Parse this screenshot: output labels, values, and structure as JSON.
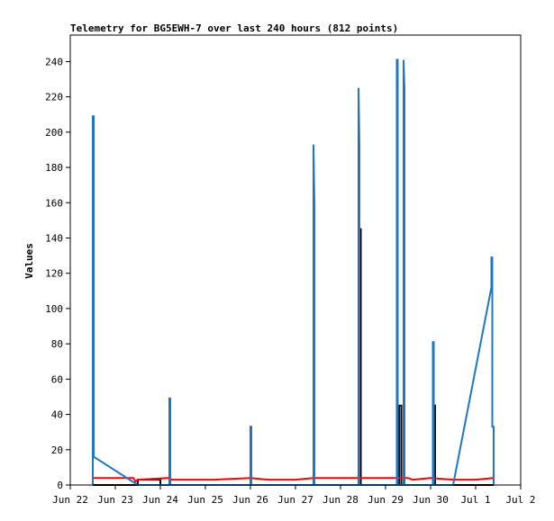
{
  "chart_data": {
    "type": "line",
    "title": "Telemetry for BG5EWH-7 over last 240 hours (812 points)",
    "ylabel": "Values",
    "xlabel": "",
    "xlim": [
      0,
      10
    ],
    "ylim": [
      0,
      255
    ],
    "x_ticks": [
      {
        "x": 0,
        "label": "Jun 22"
      },
      {
        "x": 1,
        "label": "Jun 23"
      },
      {
        "x": 2,
        "label": "Jun 24"
      },
      {
        "x": 3,
        "label": "Jun 25"
      },
      {
        "x": 4,
        "label": "Jun 26"
      },
      {
        "x": 5,
        "label": "Jun 27"
      },
      {
        "x": 6,
        "label": "Jun 28"
      },
      {
        "x": 7,
        "label": "Jun 29"
      },
      {
        "x": 8,
        "label": "Jun 30"
      },
      {
        "x": 9,
        "label": "Jul 1"
      },
      {
        "x": 10,
        "label": "Jul 2"
      }
    ],
    "y_ticks": [
      0,
      20,
      40,
      60,
      80,
      100,
      120,
      140,
      160,
      180,
      200,
      220,
      240
    ],
    "grid": false,
    "series": [
      {
        "color": "#000000",
        "points": [
          [
            0.5,
            0
          ],
          [
            1.5,
            0
          ],
          [
            1.5,
            3
          ],
          [
            2.0,
            3
          ],
          [
            2.0,
            0
          ],
          [
            6.4,
            0
          ],
          [
            6.4,
            145
          ],
          [
            6.45,
            145
          ],
          [
            6.45,
            0
          ],
          [
            7.3,
            0
          ],
          [
            7.3,
            45
          ],
          [
            7.35,
            45
          ],
          [
            7.35,
            0
          ],
          [
            8.05,
            0
          ],
          [
            8.05,
            45
          ],
          [
            8.1,
            45
          ],
          [
            8.1,
            0
          ],
          [
            9.4,
            0
          ]
        ]
      },
      {
        "color": "#ff0000",
        "points": [
          [
            0.5,
            4
          ],
          [
            1.4,
            4
          ],
          [
            1.45,
            2
          ],
          [
            1.5,
            3
          ],
          [
            2.2,
            4
          ],
          [
            2.25,
            3
          ],
          [
            3.0,
            3
          ],
          [
            3.2,
            3
          ],
          [
            4.0,
            4
          ],
          [
            4.4,
            3
          ],
          [
            5.0,
            3
          ],
          [
            5.4,
            4
          ],
          [
            6.0,
            4
          ],
          [
            7.5,
            4
          ],
          [
            7.6,
            3
          ],
          [
            8.0,
            4
          ],
          [
            8.5,
            3
          ],
          [
            9.0,
            3
          ],
          [
            9.4,
            4
          ]
        ]
      },
      {
        "color": "#1f77c4",
        "points": [
          [
            0.5,
            0
          ],
          [
            0.5,
            209
          ],
          [
            0.52,
            209
          ],
          [
            0.52,
            16
          ],
          [
            1.5,
            0
          ],
          [
            2.2,
            0
          ],
          [
            2.2,
            49
          ],
          [
            2.22,
            49
          ],
          [
            2.22,
            0
          ],
          [
            4.0,
            0
          ],
          [
            4.0,
            33
          ],
          [
            4.02,
            33
          ],
          [
            4.02,
            0
          ],
          [
            5.4,
            0
          ],
          [
            5.4,
            193
          ],
          [
            5.42,
            160
          ],
          [
            5.42,
            0
          ],
          [
            6.4,
            0
          ],
          [
            6.4,
            225
          ],
          [
            6.42,
            193
          ],
          [
            6.42,
            0
          ],
          [
            7.25,
            0
          ],
          [
            7.25,
            241
          ],
          [
            7.27,
            241
          ],
          [
            7.27,
            0
          ],
          [
            7.4,
            0
          ],
          [
            7.4,
            241
          ],
          [
            7.42,
            225
          ],
          [
            7.42,
            0
          ],
          [
            8.05,
            0
          ],
          [
            8.05,
            81
          ],
          [
            8.07,
            81
          ],
          [
            8.07,
            0
          ],
          [
            8.5,
            0
          ],
          [
            9.35,
            112
          ],
          [
            9.35,
            129
          ],
          [
            9.37,
            129
          ],
          [
            9.37,
            33
          ],
          [
            9.4,
            33
          ],
          [
            9.4,
            0
          ]
        ]
      }
    ]
  }
}
